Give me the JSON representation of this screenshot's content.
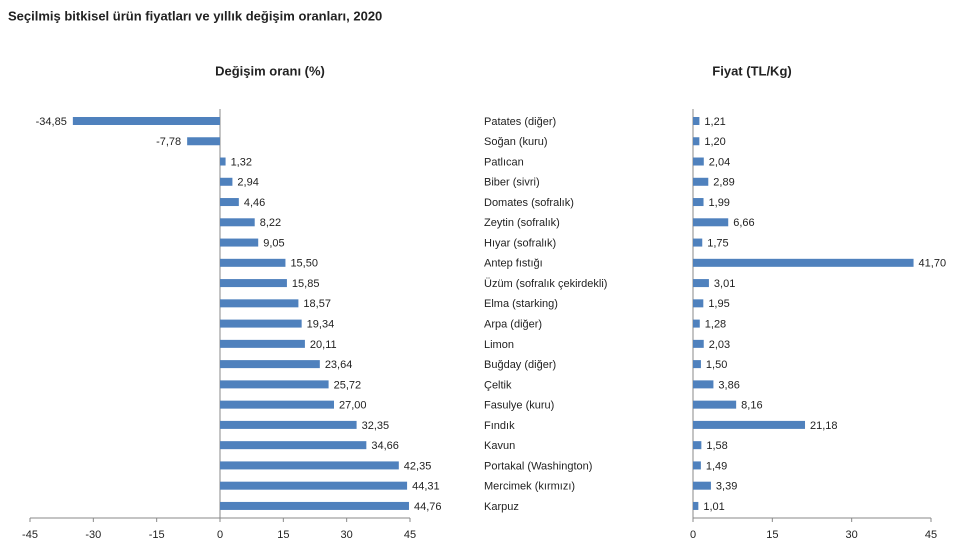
{
  "title": "Seçilmiş bitkisel ürün fiyatları ve yıllık değişim oranları, 2020",
  "chart_data": [
    {
      "type": "bar",
      "orientation": "horizontal",
      "title": "Değişim oranı (%)",
      "color": "#4f81bd",
      "categories": [
        "Patates (diğer)",
        "Soğan (kuru)",
        "Patlıcan",
        "Biber (sivri)",
        "Domates (sofralık)",
        "Zeytin (sofralık)",
        "Hıyar (sofralık)",
        "Antep fıstığı",
        "Üzüm (sofralık çekirdekli)",
        "Elma (starking)",
        "Arpa (diğer)",
        "Limon",
        "Buğday (diğer)",
        "Çeltik",
        "Fasulye (kuru)",
        "Fındık",
        "Kavun",
        "Portakal (Washington)",
        "Mercimek (kırmızı)",
        "Karpuz"
      ],
      "values": [
        -34.85,
        -7.78,
        1.32,
        2.94,
        4.46,
        8.22,
        9.05,
        15.5,
        15.85,
        18.57,
        19.34,
        20.11,
        23.64,
        25.72,
        27.0,
        32.35,
        34.66,
        42.35,
        44.31,
        44.76
      ],
      "value_labels": [
        "-34,85",
        "-7,78",
        "1,32",
        "2,94",
        "4,46",
        "8,22",
        "9,05",
        "15,50",
        "15,85",
        "18,57",
        "19,34",
        "20,11",
        "23,64",
        "25,72",
        "27,00",
        "32,35",
        "34,66",
        "42,35",
        "44,31",
        "44,76"
      ],
      "xlim": [
        -45,
        45
      ],
      "xticks": [
        -45,
        -30,
        -15,
        0,
        15,
        30,
        45
      ]
    },
    {
      "type": "bar",
      "orientation": "horizontal",
      "title": "Fiyat (TL/Kg)",
      "color": "#4f81bd",
      "values": [
        1.21,
        1.2,
        2.04,
        2.89,
        1.99,
        6.66,
        1.75,
        41.7,
        3.01,
        1.95,
        1.28,
        2.03,
        1.5,
        3.86,
        8.16,
        21.18,
        1.58,
        1.49,
        3.39,
        1.01
      ],
      "value_labels": [
        "1,21",
        "1,20",
        "2,04",
        "2,89",
        "1,99",
        "6,66",
        "1,75",
        "41,70",
        "3,01",
        "1,95",
        "1,28",
        "2,03",
        "1,50",
        "3,86",
        "8,16",
        "21,18",
        "1,58",
        "1,49",
        "3,39",
        "1,01"
      ],
      "xlim": [
        0,
        45
      ],
      "xticks": [
        0,
        15,
        30,
        45
      ]
    }
  ]
}
